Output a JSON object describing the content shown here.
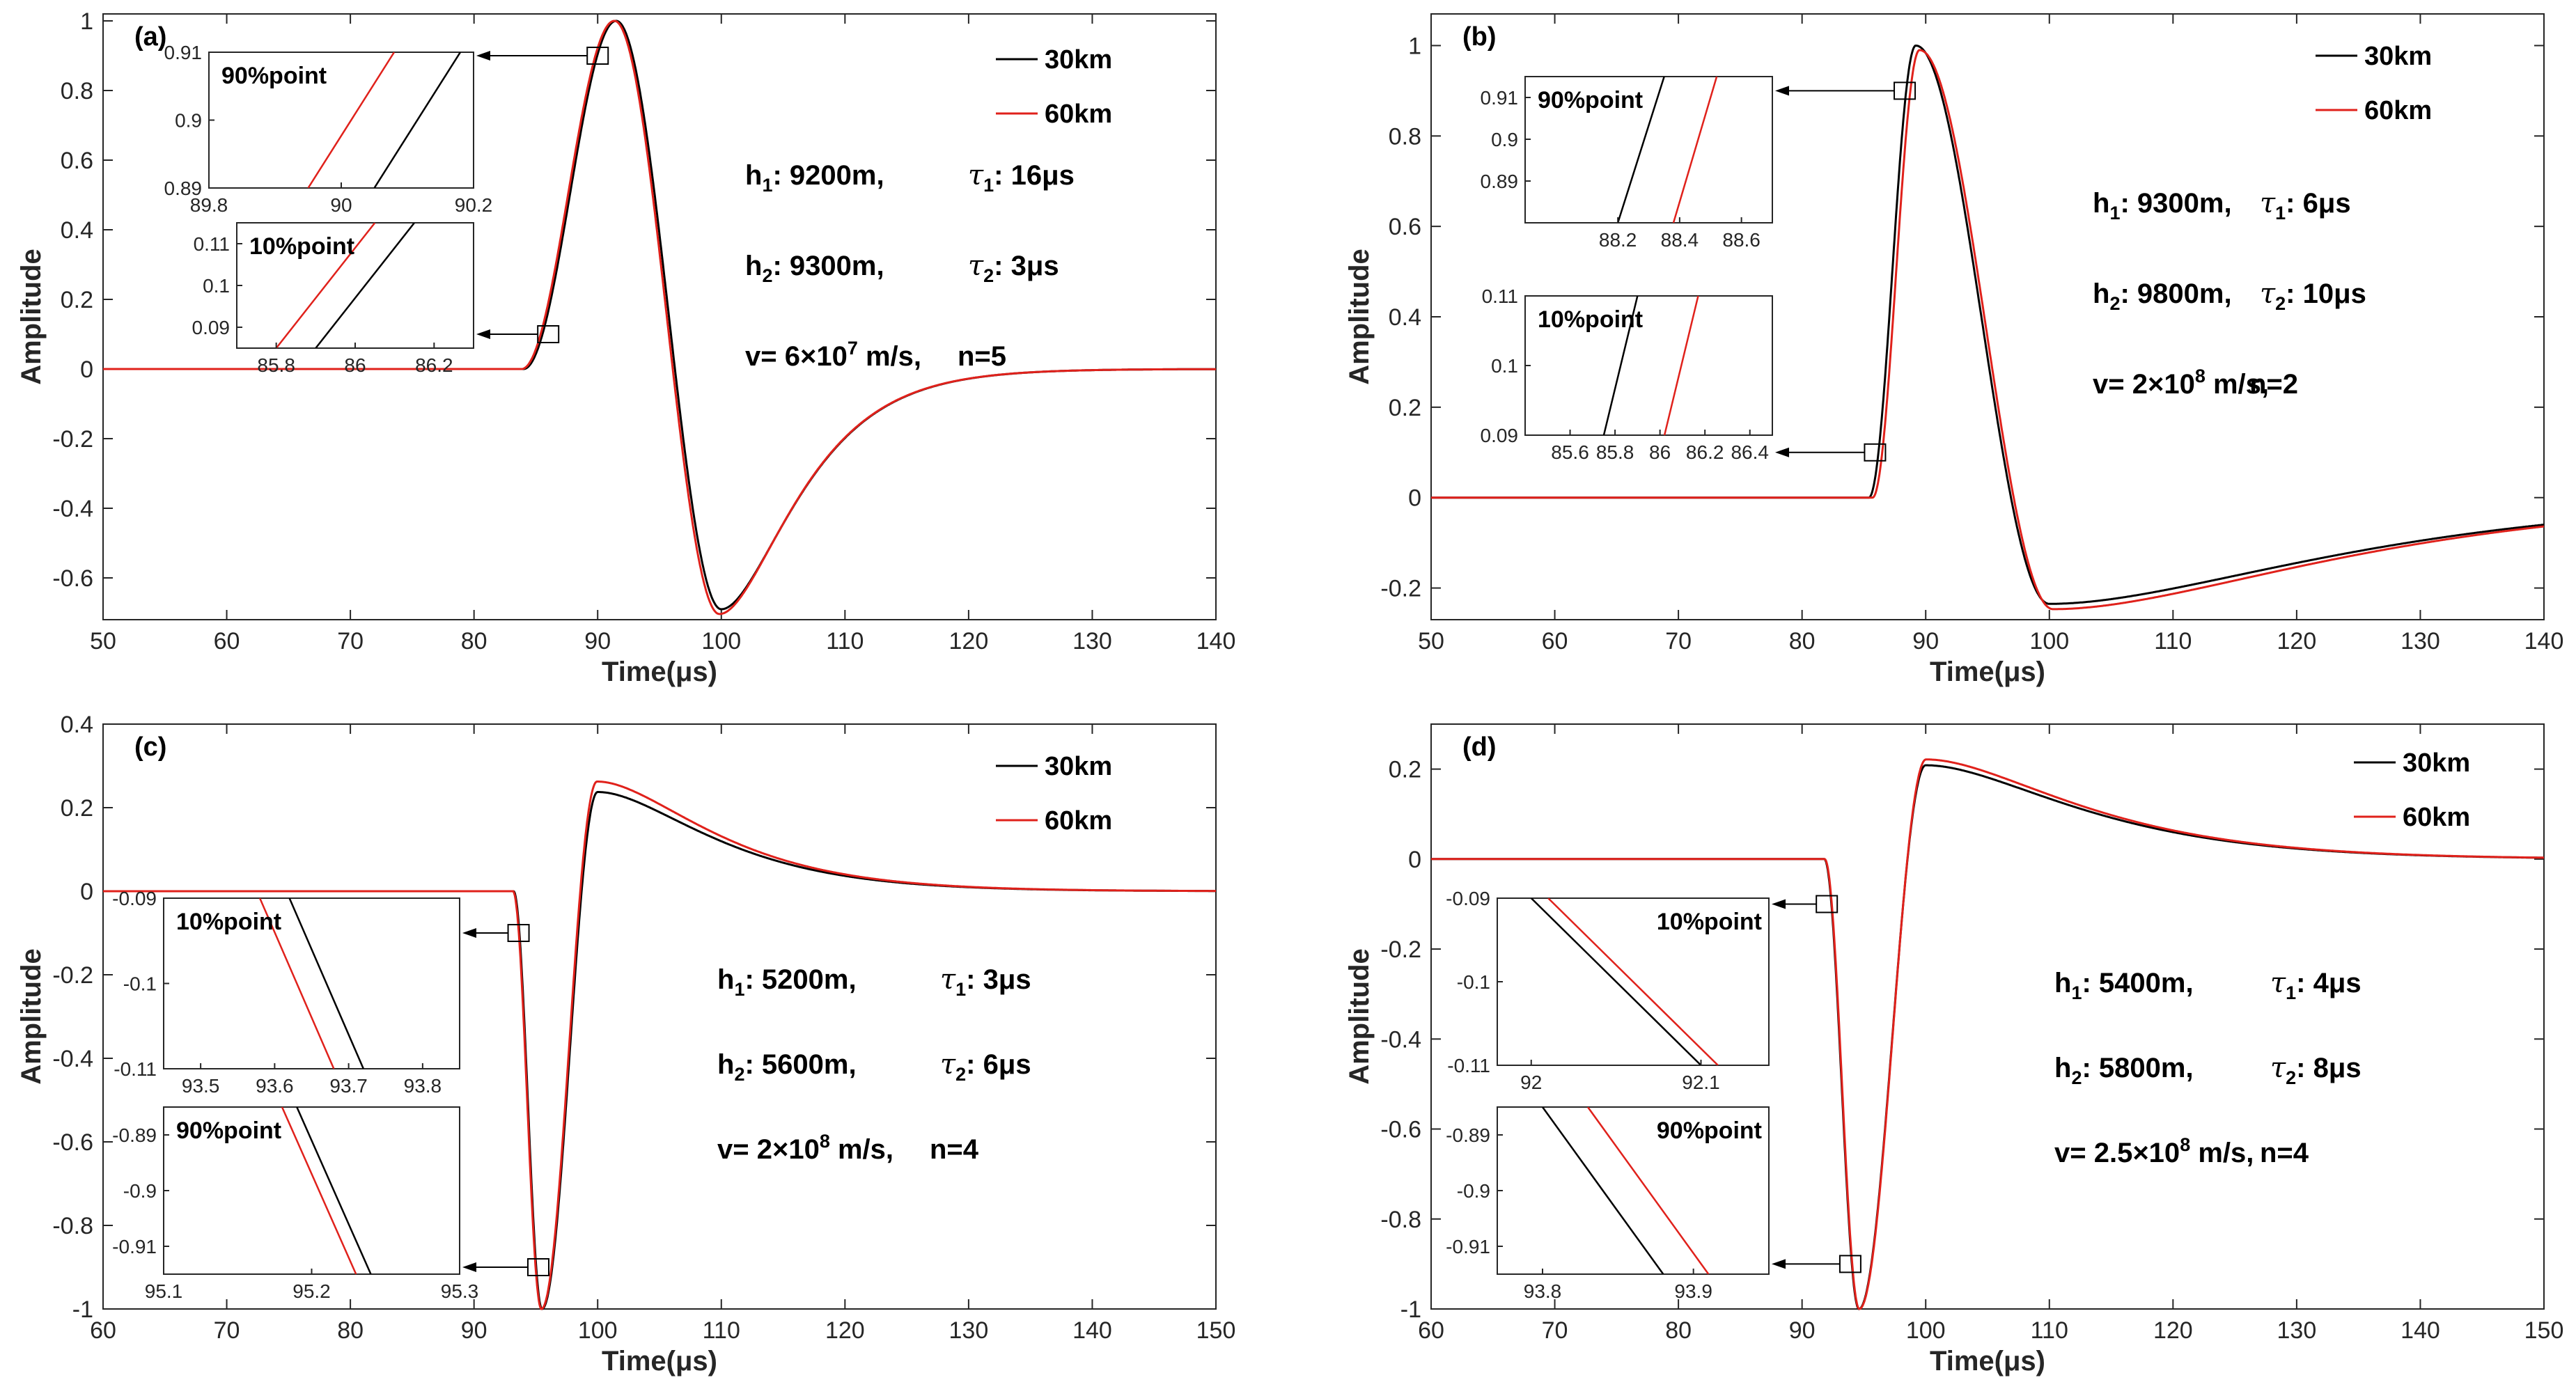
{
  "chart_data": [
    {
      "panel": "(a)",
      "type": "line",
      "xlabel": "Time(μs)",
      "ylabel": "Amplitude",
      "xlim": [
        50,
        140
      ],
      "ylim": [
        -0.72,
        1.02
      ],
      "xticks": [
        "50",
        "60",
        "70",
        "80",
        "90",
        "100",
        "110",
        "120",
        "130",
        "140"
      ],
      "yticks": [
        "-0.6",
        "-0.4",
        "-0.2",
        "0",
        "0.2",
        "0.4",
        "0.6",
        "0.8",
        "1"
      ],
      "pulse": {
        "onset": 84,
        "peak_t": 91.5,
        "peak": 1.0,
        "trough_t": 100,
        "trough": -0.69,
        "tail_decay": 4
      },
      "series": [
        {
          "name": "30km",
          "color": "#000000",
          "shift": 0,
          "scale": 1.0
        },
        {
          "name": "60km",
          "color": "#e0211b",
          "shift": -0.15,
          "scale": 1.0,
          "trough_scale": 1.02
        }
      ],
      "params": {
        "h1": "9200m,",
        "tau1": "16μs",
        "h2": "9300m,",
        "tau2": "3μs",
        "v_base": "6×10",
        "v_exp": "7",
        "v_unit": "m/s,",
        "n": "n=5"
      },
      "insets": [
        {
          "label": "90%point",
          "xlim": [
            89.8,
            90.2
          ],
          "ylim": [
            0.89,
            0.91
          ],
          "xticks": [
            "89.8",
            "90",
            "90.2"
          ],
          "yticks": [
            "0.89",
            "0.9",
            "0.91"
          ],
          "lines": [
            {
              "color": "#e0211b",
              "x": [
                89.95,
                90.08
              ]
            },
            {
              "color": "#000000",
              "x": [
                90.05,
                90.18
              ]
            }
          ],
          "marker": [
            90,
            0.9
          ]
        },
        {
          "label": "10%point",
          "xlim": [
            85.7,
            86.3
          ],
          "ylim": [
            0.085,
            0.115
          ],
          "xticks": [
            "85.8",
            "86",
            "86.2"
          ],
          "yticks": [
            "0.09",
            "0.1",
            "0.11"
          ],
          "lines": [
            {
              "color": "#e0211b",
              "x": [
                85.8,
                86.05
              ]
            },
            {
              "color": "#000000",
              "x": [
                85.9,
                86.15
              ]
            }
          ],
          "marker": [
            86,
            0.1
          ]
        }
      ]
    },
    {
      "panel": "(b)",
      "type": "line",
      "xlabel": "Time(μs)",
      "ylabel": "Amplitude",
      "xlim": [
        50,
        140
      ],
      "ylim": [
        -0.27,
        1.07
      ],
      "xticks": [
        "50",
        "60",
        "70",
        "80",
        "90",
        "100",
        "110",
        "120",
        "130",
        "140"
      ],
      "yticks": [
        "-0.2",
        "0",
        "0.2",
        "0.4",
        "0.6",
        "0.8",
        "1"
      ],
      "pulse": {
        "onset": 85.4,
        "peak_t": 89.2,
        "peak": 1.0,
        "trough_t": 100,
        "trough": -0.235,
        "tail_decay": 15
      },
      "series": [
        {
          "name": "30km",
          "color": "#000000",
          "shift": 0,
          "scale": 1.0
        },
        {
          "name": "60km",
          "color": "#e0211b",
          "shift": 0.3,
          "scale": 0.99,
          "trough_scale": 1.05
        }
      ],
      "params": {
        "h1": "9300m,",
        "tau1": "6μs",
        "h2": "9800m,",
        "tau2": "10μs",
        "v_base": "2×10",
        "v_exp": "8",
        "v_unit": "m/s,",
        "n": "n=2"
      },
      "insets": [
        {
          "label": "90%point",
          "xlim": [
            87.9,
            88.7
          ],
          "ylim": [
            0.88,
            0.915
          ],
          "xticks": [
            "88.2",
            "88.4",
            "88.6"
          ],
          "yticks": [
            "0.89",
            "0.9",
            "0.91"
          ],
          "lines": [
            {
              "color": "#000000",
              "x": [
                88.2,
                88.35
              ]
            },
            {
              "color": "#e0211b",
              "x": [
                88.38,
                88.52
              ]
            }
          ],
          "marker": [
            88.3,
            0.9
          ]
        },
        {
          "label": "10%point",
          "xlim": [
            85.4,
            86.5
          ],
          "ylim": [
            0.09,
            0.11
          ],
          "xticks": [
            "85.6",
            "85.8",
            "86",
            "86.2",
            "86.4"
          ],
          "yticks": [
            "0.09",
            "0.1",
            "0.11"
          ],
          "lines": [
            {
              "color": "#000000",
              "x": [
                85.75,
                85.9
              ]
            },
            {
              "color": "#e0211b",
              "x": [
                86.02,
                86.17
              ]
            }
          ],
          "marker": [
            85.9,
            0.1
          ]
        }
      ]
    },
    {
      "panel": "(c)",
      "type": "line",
      "xlabel": "Time(μs)",
      "ylabel": "Amplitude",
      "xlim": [
        60,
        150
      ],
      "ylim": [
        -1.0,
        0.4
      ],
      "xticks": [
        "60",
        "70",
        "80",
        "90",
        "100",
        "110",
        "120",
        "130",
        "140",
        "150"
      ],
      "yticks": [
        "-1",
        "-0.8",
        "-0.6",
        "-0.4",
        "-0.2",
        "0",
        "0.2",
        "0.4"
      ],
      "pulse": {
        "onset": 93.2,
        "peak_t": 95.5,
        "peak": -1.0,
        "trough_t": 100,
        "trough": 0.25,
        "tail_decay": 6
      },
      "series": [
        {
          "name": "30km",
          "color": "#000000",
          "shift": 0,
          "scale": 1.0,
          "trough_scale": 0.95
        },
        {
          "name": "60km",
          "color": "#e0211b",
          "shift": -0.05,
          "scale": 1.0,
          "trough_scale": 1.05
        }
      ],
      "params": {
        "h1": "5200m,",
        "tau1": "3μs",
        "h2": "5600m,",
        "tau2": "6μs",
        "v_base": "2×10",
        "v_exp": "8",
        "v_unit": "m/s,",
        "n": "n=4"
      },
      "insets": [
        {
          "label": "10%point",
          "xlim": [
            93.45,
            93.85
          ],
          "ylim": [
            -0.11,
            -0.09
          ],
          "xticks": [
            "93.5",
            "93.6",
            "93.7",
            "93.8"
          ],
          "yticks": [
            "-0.09",
            "-0.1",
            "-0.11"
          ],
          "lines": [
            {
              "color": "#e0211b",
              "x": [
                93.58,
                93.68
              ]
            },
            {
              "color": "#000000",
              "x": [
                93.62,
                93.72
              ]
            }
          ],
          "marker": [
            93.6,
            -0.1
          ]
        },
        {
          "label": "90%point",
          "xlim": [
            95.1,
            95.3
          ],
          "ylim": [
            -0.915,
            -0.885
          ],
          "xticks": [
            "95.1",
            "95.2",
            "95.3"
          ],
          "yticks": [
            "-0.89",
            "-0.9",
            "-0.91"
          ],
          "lines": [
            {
              "color": "#e0211b",
              "x": [
                95.18,
                95.23
              ]
            },
            {
              "color": "#000000",
              "x": [
                95.19,
                95.24
              ]
            }
          ],
          "marker": [
            95.2,
            -0.9
          ]
        }
      ]
    },
    {
      "panel": "(d)",
      "type": "line",
      "xlabel": "Time(μs)",
      "ylabel": "Amplitude",
      "xlim": [
        60,
        150
      ],
      "ylim": [
        -1.0,
        0.3
      ],
      "xticks": [
        "60",
        "70",
        "80",
        "90",
        "100",
        "110",
        "120",
        "130",
        "140",
        "150"
      ],
      "yticks": [
        "-1",
        "-0.8",
        "-0.6",
        "-0.4",
        "-0.2",
        "0",
        "0.2"
      ],
      "pulse": {
        "onset": 91.8,
        "peak_t": 94.6,
        "peak": -1.0,
        "trough_t": 100,
        "trough": 0.215,
        "tail_decay": 8
      },
      "series": [
        {
          "name": "30km",
          "color": "#000000",
          "shift": 0,
          "scale": 1.0,
          "trough_scale": 0.97
        },
        {
          "name": "60km",
          "color": "#e0211b",
          "shift": 0.03,
          "scale": 1.0,
          "trough_scale": 1.03
        }
      ],
      "params": {
        "h1": "5400m,",
        "tau1": "4μs",
        "h2": "5800m,",
        "tau2": "8μs",
        "v_base": "2.5×10",
        "v_exp": "8",
        "v_unit": "m/s,",
        "n": "n=4"
      },
      "insets": [
        {
          "label": "10%point",
          "xlim": [
            91.98,
            92.14
          ],
          "ylim": [
            -0.11,
            -0.09
          ],
          "xticks": [
            "92",
            "92.1"
          ],
          "yticks": [
            "-0.09",
            "-0.1",
            "-0.11"
          ],
          "lines": [
            {
              "color": "#000000",
              "x": [
                92.0,
                92.1
              ]
            },
            {
              "color": "#e0211b",
              "x": [
                92.01,
                92.11
              ]
            }
          ],
          "marker": [
            92.0,
            -0.1
          ]
        },
        {
          "label": "90%point",
          "xlim": [
            93.77,
            93.95
          ],
          "ylim": [
            -0.915,
            -0.885
          ],
          "xticks": [
            "93.8",
            "93.9"
          ],
          "yticks": [
            "-0.89",
            "-0.9",
            "-0.91"
          ],
          "lines": [
            {
              "color": "#000000",
              "x": [
                93.8,
                93.88
              ]
            },
            {
              "color": "#e0211b",
              "x": [
                93.83,
                93.91
              ]
            }
          ],
          "marker": [
            93.9,
            -0.9
          ]
        }
      ]
    }
  ]
}
